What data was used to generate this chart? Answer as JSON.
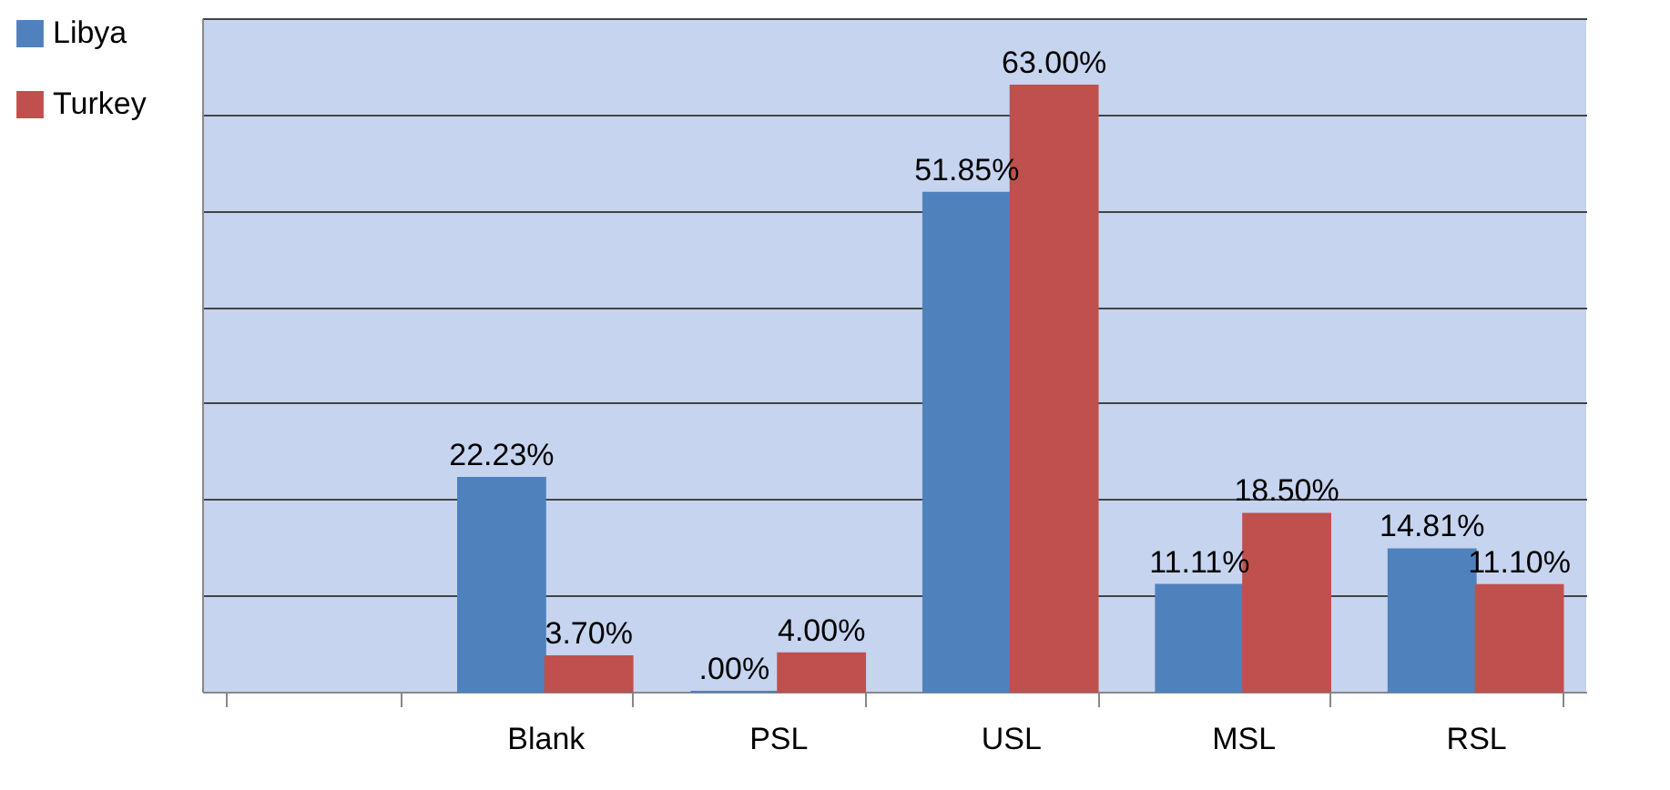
{
  "chart_data": {
    "type": "bar",
    "categories": [
      null,
      "Blank",
      "PSL",
      "USL",
      "MSL",
      "RSL"
    ],
    "series": [
      {
        "name": "Libya",
        "color": "#4f81bd",
        "values": [
          null,
          22.23,
          0,
          51.85,
          11.11,
          14.81
        ],
        "value_labels": [
          null,
          "22.23%",
          ".00%",
          "51.85%",
          "11.11%",
          "14.81%"
        ]
      },
      {
        "name": "Turkey",
        "color": "#c0504d",
        "values": [
          null,
          3.7,
          4.0,
          63.0,
          18.5,
          11.1
        ],
        "value_labels": [
          null,
          "3.70%",
          "4.00%",
          "63.00%",
          "18.50%",
          "11.10%"
        ]
      }
    ],
    "ylim": [
      0,
      70
    ],
    "yticks": [
      {
        "value": 0,
        "label": null
      },
      {
        "value": 10,
        "label": null
      },
      {
        "value": 20,
        "label": null
      },
      {
        "value": 30,
        "label": null
      },
      {
        "value": 40,
        "label": null
      },
      {
        "value": 50,
        "label": null
      },
      {
        "value": 60,
        "label": null
      },
      {
        "value": 70,
        "label": null
      }
    ],
    "tick_labels": "x",
    "grid": "y",
    "legend": "left"
  }
}
